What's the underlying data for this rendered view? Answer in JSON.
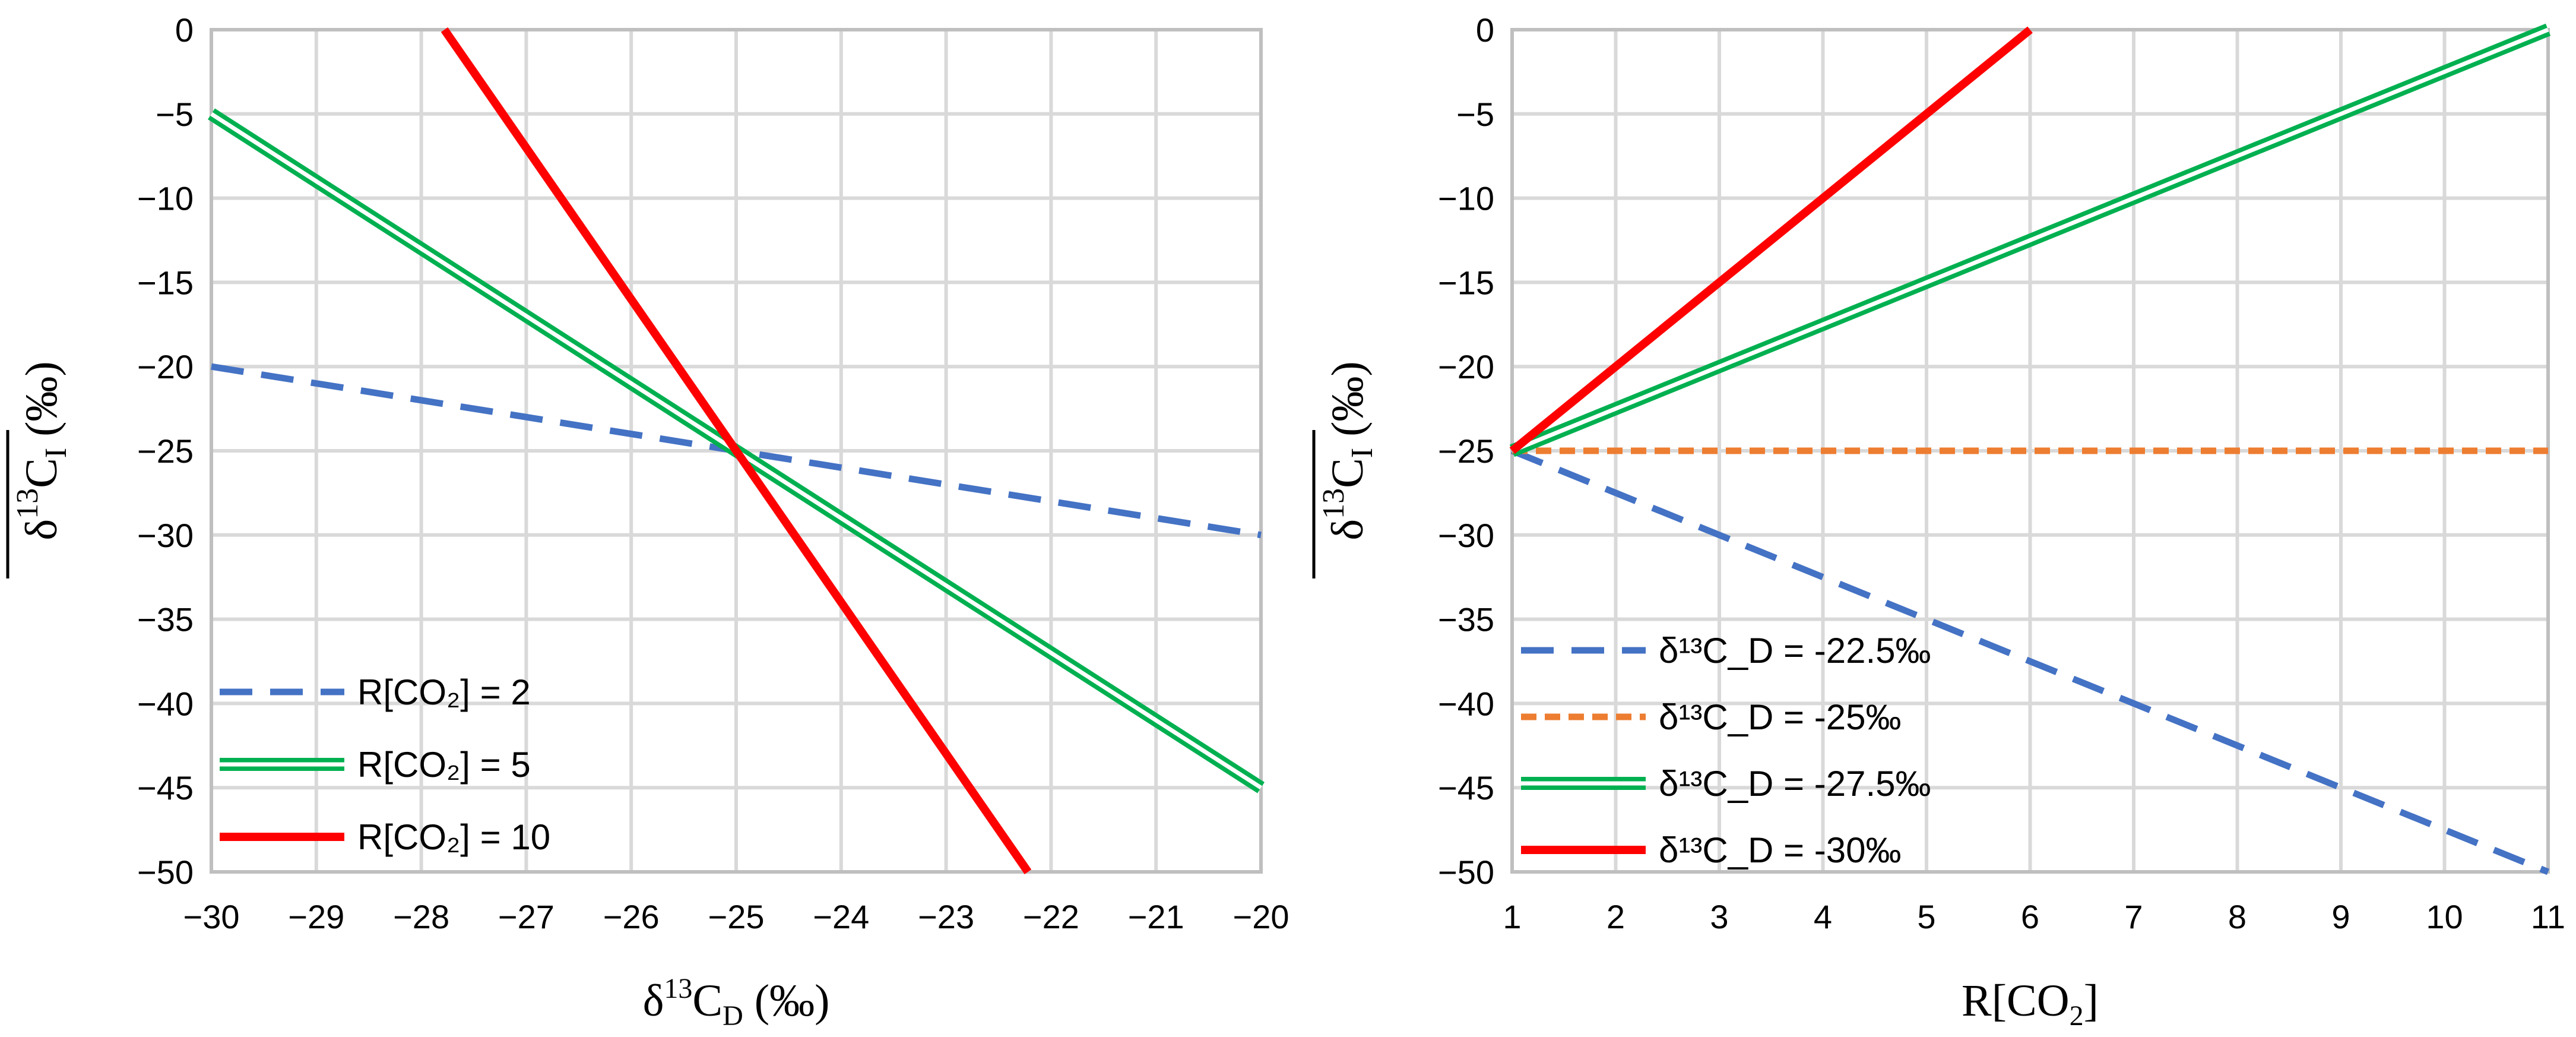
{
  "chart_data": [
    {
      "type": "line",
      "x_domain": [
        -30,
        -20
      ],
      "y_domain": [
        -50,
        0
      ],
      "xticks": [
        -30,
        -29,
        -28,
        -27,
        -26,
        -25,
        -24,
        -23,
        -22,
        -21,
        -20
      ],
      "yticks": [
        0,
        -5,
        -10,
        -15,
        -20,
        -25,
        -30,
        -35,
        -40,
        -45,
        -50
      ],
      "xlabel": {
        "main": "δ",
        "sup": "13",
        "base": "C",
        "sub": "D",
        "unit": " (‰)"
      },
      "ylabel": {
        "main": "δ",
        "sup": "13",
        "base": "C",
        "sub": "I",
        "unit": " (‰)",
        "overline": true
      },
      "legend_position": "bottom-left",
      "series": [
        {
          "name": "R[CO₂] = 2",
          "style": "dashed",
          "color": "#4472c4",
          "x": [
            -30,
            -20
          ],
          "y": [
            -20,
            -30
          ]
        },
        {
          "name": "R[CO₂] = 5",
          "style": "double",
          "color": "#00b050",
          "x": [
            -30,
            -20
          ],
          "y": [
            -5,
            -45
          ]
        },
        {
          "name": "R[CO₂] = 10",
          "style": "solid",
          "color": "#ff0000",
          "x": [
            -27.78,
            -22.22
          ],
          "y": [
            0,
            -50
          ]
        }
      ]
    },
    {
      "type": "line",
      "x_domain": [
        1,
        11
      ],
      "y_domain": [
        -50,
        0
      ],
      "xticks": [
        1,
        2,
        3,
        4,
        5,
        6,
        7,
        8,
        9,
        10,
        11
      ],
      "yticks": [
        0,
        -5,
        -10,
        -15,
        -20,
        -25,
        -30,
        -35,
        -40,
        -45,
        -50
      ],
      "xlabel": {
        "text": "R[CO",
        "sub": "2",
        "end": "]"
      },
      "ylabel": {
        "main": "δ",
        "sup": "13",
        "base": "C",
        "sub": "I",
        "unit": " (‰)",
        "overline": true
      },
      "legend_position": "bottom-left",
      "series": [
        {
          "name": "δ¹³C_D = -22.5‰",
          "style": "dashed",
          "color": "#4472c4",
          "x": [
            1,
            11
          ],
          "y": [
            -25,
            -50
          ]
        },
        {
          "name": "δ¹³C_D = -25‰",
          "style": "dotted",
          "color": "#ed7d31",
          "x": [
            1,
            11
          ],
          "y": [
            -25,
            -25
          ]
        },
        {
          "name": "δ¹³C_D = -27.5‰",
          "style": "double",
          "color": "#00b050",
          "x": [
            1,
            11
          ],
          "y": [
            -25,
            0
          ]
        },
        {
          "name": "δ¹³C_D = -30‰",
          "style": "solid",
          "color": "#ff0000",
          "x": [
            1,
            6
          ],
          "y": [
            -25,
            0
          ]
        }
      ]
    }
  ]
}
